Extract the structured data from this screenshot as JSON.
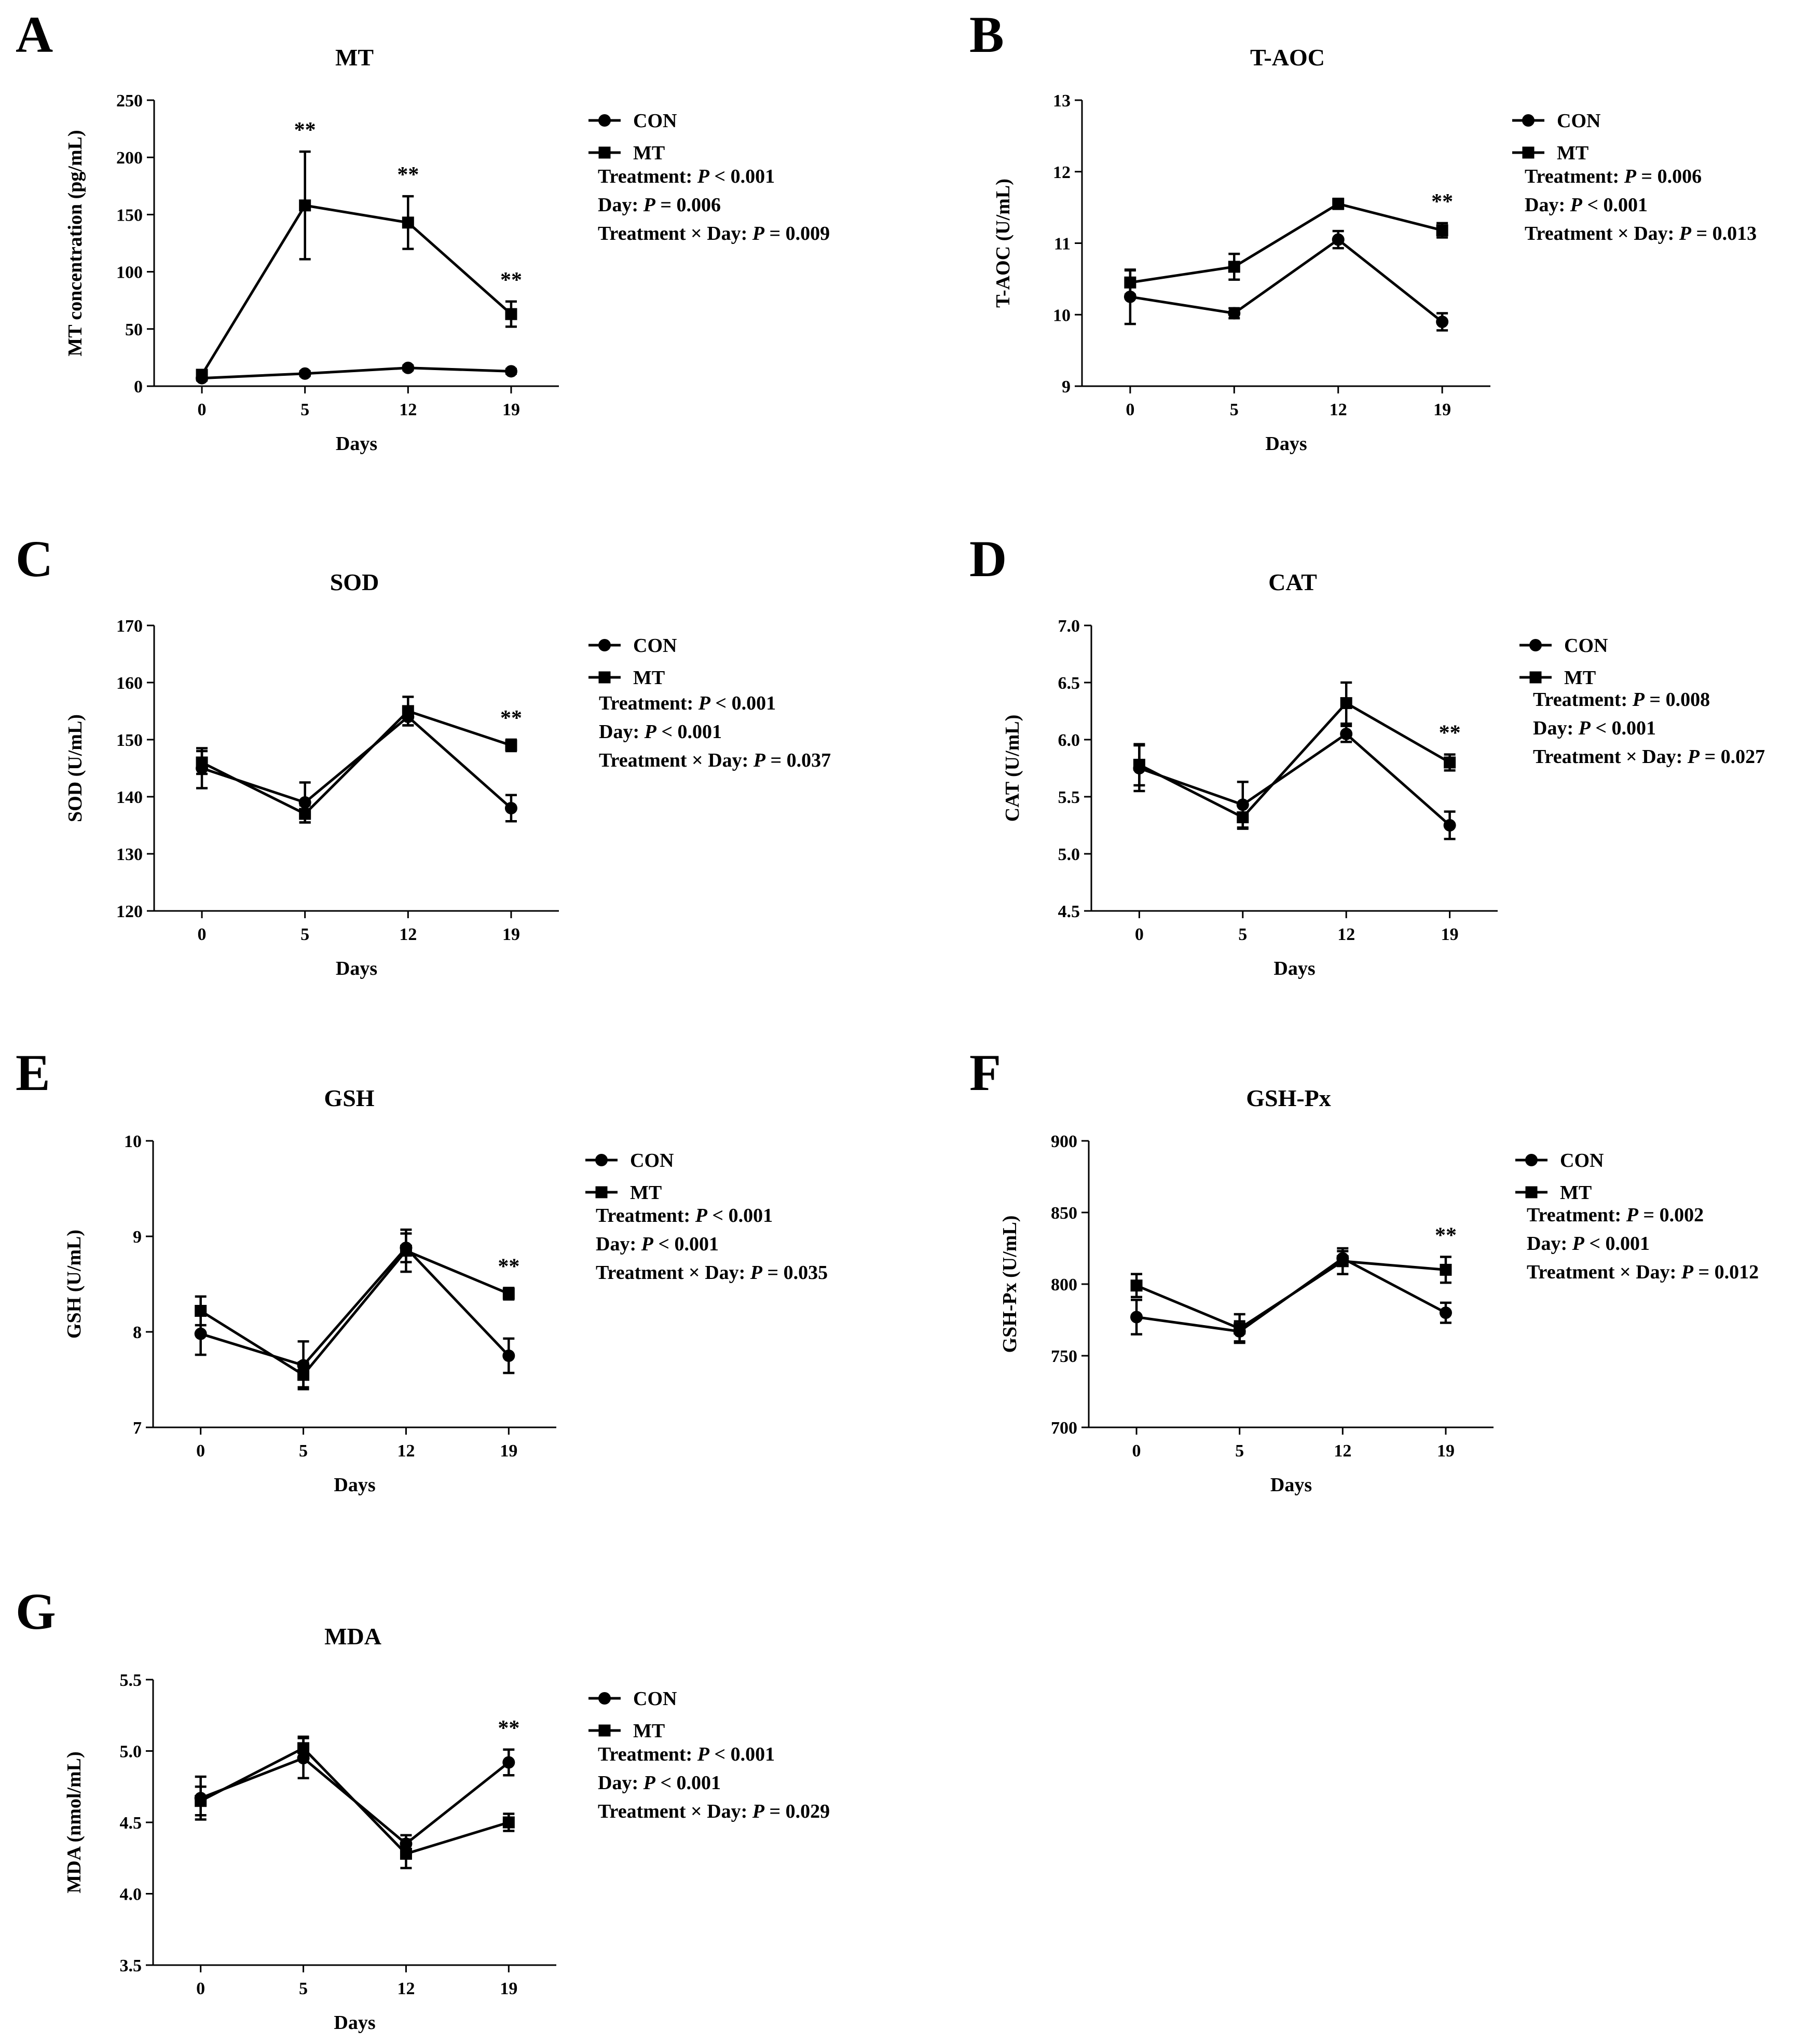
{
  "figure": {
    "legend": {
      "con_label": "CON",
      "mt_label": "MT"
    },
    "stats_labels": {
      "treatment": "Treatment: ",
      "day": "Day: ",
      "interaction": "Treatment × Day: ",
      "p": "P"
    }
  },
  "chart_data": [
    {
      "panel": "A",
      "type": "line",
      "title": "MT",
      "xlabel": "Days",
      "ylabel": "MT concentration (pg/mL)",
      "categories": [
        "0",
        "5",
        "12",
        "19"
      ],
      "ylim": [
        0,
        250
      ],
      "yticks": [
        "0",
        "50",
        "100",
        "150",
        "200",
        "250"
      ],
      "series": [
        {
          "name": "CON",
          "marker": "circle",
          "values": [
            7,
            11,
            16,
            13
          ],
          "errors": [
            2,
            2,
            2,
            2
          ]
        },
        {
          "name": "MT",
          "marker": "square",
          "values": [
            10,
            158,
            143,
            63
          ],
          "errors": [
            3,
            47,
            23,
            11
          ]
        }
      ],
      "significance": [
        {
          "index": 1,
          "label": "**"
        },
        {
          "index": 2,
          "label": "**"
        },
        {
          "index": 3,
          "label": "**"
        }
      ],
      "stats": {
        "treatment": "< 0.001",
        "day": "= 0.006",
        "interaction": "= 0.009"
      }
    },
    {
      "panel": "B",
      "type": "line",
      "title": "T-AOC",
      "xlabel": "Days",
      "ylabel": "T-AOC (U/mL)",
      "categories": [
        "0",
        "5",
        "12",
        "19"
      ],
      "ylim": [
        9,
        13
      ],
      "yticks": [
        "9",
        "10",
        "11",
        "12",
        "13"
      ],
      "series": [
        {
          "name": "CON",
          "marker": "circle",
          "values": [
            10.25,
            10.02,
            11.05,
            9.9
          ],
          "errors": [
            0.38,
            0.07,
            0.12,
            0.12
          ]
        },
        {
          "name": "MT",
          "marker": "square",
          "values": [
            10.45,
            10.67,
            11.55,
            11.18
          ],
          "errors": [
            0.17,
            0.18,
            0.07,
            0.1
          ]
        }
      ],
      "significance": [
        {
          "index": 3,
          "label": "**"
        }
      ],
      "stats": {
        "treatment": "= 0.006",
        "day": "< 0.001",
        "interaction": "= 0.013"
      }
    },
    {
      "panel": "C",
      "type": "line",
      "title": "SOD",
      "xlabel": "Days",
      "ylabel": "SOD (U/mL)",
      "categories": [
        "0",
        "5",
        "12",
        "19"
      ],
      "ylim": [
        120,
        170
      ],
      "yticks": [
        "120",
        "130",
        "140",
        "150",
        "160",
        "170"
      ],
      "series": [
        {
          "name": "CON",
          "marker": "circle",
          "values": [
            145,
            139,
            154,
            138
          ],
          "errors": [
            3.5,
            3.5,
            1.5,
            2.3
          ]
        },
        {
          "name": "MT",
          "marker": "square",
          "values": [
            146,
            137,
            155,
            149
          ],
          "errors": [
            2,
            1.5,
            2.5,
            1
          ]
        }
      ],
      "significance": [
        {
          "index": 3,
          "label": "**"
        }
      ],
      "stats": {
        "treatment": "< 0.001",
        "day": "< 0.001",
        "interaction": "= 0.037"
      }
    },
    {
      "panel": "D",
      "type": "line",
      "title": "CAT",
      "xlabel": "Days",
      "ylabel": "CAT (U/mL)",
      "categories": [
        "0",
        "5",
        "12",
        "19"
      ],
      "ylim": [
        4.5,
        7.0
      ],
      "yticks": [
        "4.5",
        "5.0",
        "5.5",
        "6.0",
        "6.5",
        "7.0"
      ],
      "series": [
        {
          "name": "CON",
          "marker": "circle",
          "values": [
            5.75,
            5.43,
            6.05,
            5.25
          ],
          "errors": [
            0.2,
            0.2,
            0.07,
            0.12
          ]
        },
        {
          "name": "MT",
          "marker": "square",
          "values": [
            5.78,
            5.32,
            6.32,
            5.8
          ],
          "errors": [
            0.18,
            0.1,
            0.18,
            0.07
          ]
        }
      ],
      "significance": [
        {
          "index": 3,
          "label": "**"
        }
      ],
      "stats": {
        "treatment": "= 0.008",
        "day": "< 0.001",
        "interaction": "= 0.027"
      }
    },
    {
      "panel": "E",
      "type": "line",
      "title": "GSH",
      "xlabel": "Days",
      "ylabel": "GSH (U/mL)",
      "categories": [
        "0",
        "5",
        "12",
        "19"
      ],
      "ylim": [
        7,
        10
      ],
      "yticks": [
        "7",
        "8",
        "9",
        "10"
      ],
      "series": [
        {
          "name": "CON",
          "marker": "circle",
          "values": [
            7.98,
            7.65,
            8.88,
            7.75
          ],
          "errors": [
            0.22,
            0.25,
            0.15,
            0.18
          ]
        },
        {
          "name": "MT",
          "marker": "square",
          "values": [
            8.22,
            7.55,
            8.85,
            8.4
          ],
          "errors": [
            0.15,
            0.13,
            0.22,
            0.06
          ]
        }
      ],
      "significance": [
        {
          "index": 3,
          "label": "**"
        }
      ],
      "stats": {
        "treatment": "< 0.001",
        "day": "< 0.001",
        "interaction": "= 0.035"
      }
    },
    {
      "panel": "F",
      "type": "line",
      "title": "GSH-Px",
      "xlabel": "Days",
      "ylabel": "GSH-Px (U/mL)",
      "categories": [
        "0",
        "5",
        "12",
        "19"
      ],
      "ylim": [
        700,
        900
      ],
      "yticks": [
        "700",
        "750",
        "800",
        "850",
        "900"
      ],
      "series": [
        {
          "name": "CON",
          "marker": "circle",
          "values": [
            777,
            767,
            818,
            780
          ],
          "errors": [
            12,
            7,
            5,
            7
          ]
        },
        {
          "name": "MT",
          "marker": "square",
          "values": [
            799,
            769,
            816,
            810
          ],
          "errors": [
            8,
            10,
            9,
            9
          ]
        }
      ],
      "significance": [
        {
          "index": 3,
          "label": "**"
        }
      ],
      "stats": {
        "treatment": "= 0.002",
        "day": "< 0.001",
        "interaction": "= 0.012"
      }
    },
    {
      "panel": "G",
      "type": "line",
      "title": "MDA",
      "xlabel": "Days",
      "ylabel": "MDA (nmol/mL)",
      "categories": [
        "0",
        "5",
        "12",
        "19"
      ],
      "ylim": [
        3.5,
        5.5
      ],
      "yticks": [
        "3.5",
        "4.0",
        "4.5",
        "5.0",
        "5.5"
      ],
      "series": [
        {
          "name": "CON",
          "marker": "circle",
          "values": [
            4.67,
            4.95,
            4.35,
            4.92
          ],
          "errors": [
            0.15,
            0.14,
            0.06,
            0.09
          ]
        },
        {
          "name": "MT",
          "marker": "square",
          "values": [
            4.65,
            5.02,
            4.28,
            4.5
          ],
          "errors": [
            0.1,
            0.08,
            0.1,
            0.06
          ]
        }
      ],
      "significance": [
        {
          "index": 3,
          "label": "**"
        }
      ],
      "stats": {
        "treatment": "< 0.001",
        "day": "< 0.001",
        "interaction": "= 0.029"
      }
    }
  ]
}
